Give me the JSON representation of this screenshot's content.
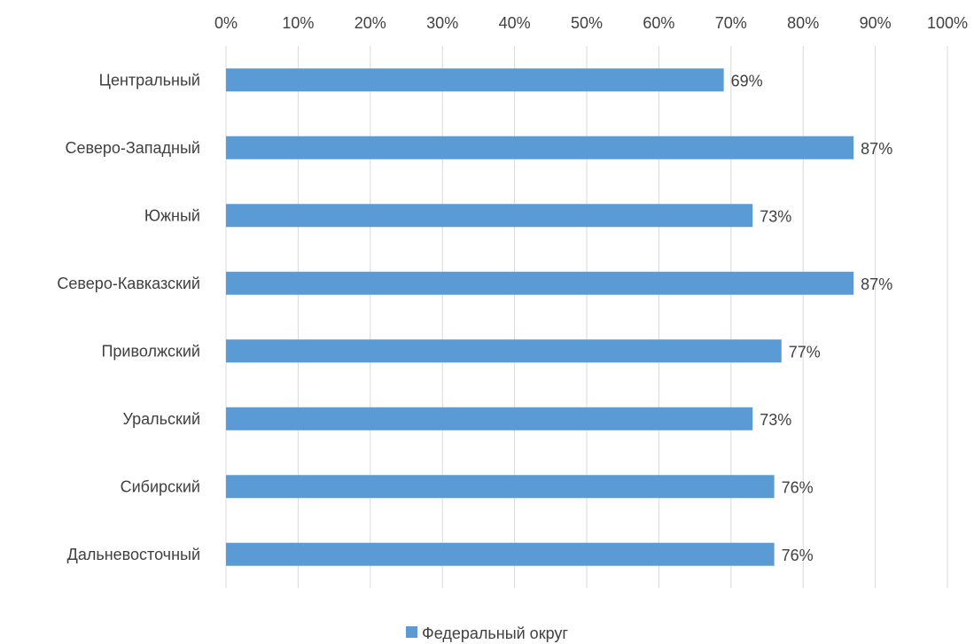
{
  "chart_data": {
    "type": "bar",
    "orientation": "horizontal",
    "categories": [
      "Центральный",
      "Северо-Западный",
      "Южный",
      "Северо-Кавказский",
      "Приволжский",
      "Уральский",
      "Сибирский",
      "Дальневосточный"
    ],
    "series": [
      {
        "name": "Федеральный округ",
        "values": [
          69,
          87,
          73,
          87,
          77,
          73,
          76,
          76
        ],
        "color": "#5b9bd5"
      }
    ],
    "data_labels": [
      "69%",
      "87%",
      "73%",
      "87%",
      "77%",
      "73%",
      "76%",
      "76%"
    ],
    "x_ticks": [
      "0%",
      "10%",
      "20%",
      "30%",
      "40%",
      "50%",
      "60%",
      "70%",
      "80%",
      "90%",
      "100%"
    ],
    "xlim": [
      0,
      100
    ],
    "x_axis_position": "top",
    "grid": true,
    "legend_position": "bottom"
  }
}
